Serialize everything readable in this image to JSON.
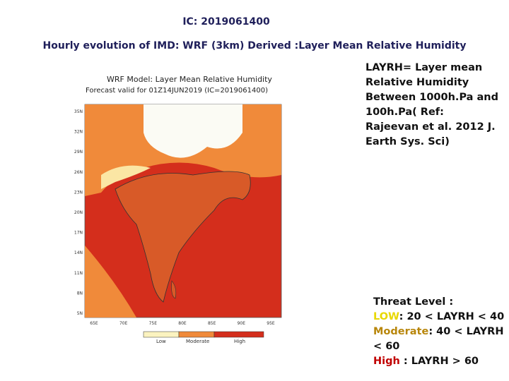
{
  "header": {
    "ic": "IC: 2019061400",
    "title": "Hourly evolution of IMD: WRF (3km) Derived :Layer Mean Relative Humidity"
  },
  "map": {
    "title_lines": [
      "WRF Model: Layer Mean Relative Humidity",
      "Forecast valid for 01Z14JUN2019 (IC=2019061400)"
    ],
    "lat_labels": [
      "35N",
      "32N",
      "29N",
      "26N",
      "23N",
      "20N",
      "17N",
      "14N",
      "11N",
      "8N",
      "5N"
    ],
    "lon_labels": [
      "65E",
      "70E",
      "75E",
      "80E",
      "85E",
      "90E",
      "95E"
    ],
    "legend": [
      "Low",
      "Moderate",
      "High"
    ]
  },
  "reference": "LAYRH= Layer mean Relative Humidity Between 1000h.Pa and 100h.Pa( Ref: Rajeevan et al. 2012 J. Earth Sys. Sci)",
  "threat": {
    "heading": "Threat Level :",
    "levels": [
      {
        "label": "LOW",
        "text": ": 20 < LAYRH <  40"
      },
      {
        "label": "Moderate",
        "text": ": 40 < LAYRH < 60"
      },
      {
        "label": "High",
        "text": " : LAYRH > 60"
      }
    ]
  }
}
